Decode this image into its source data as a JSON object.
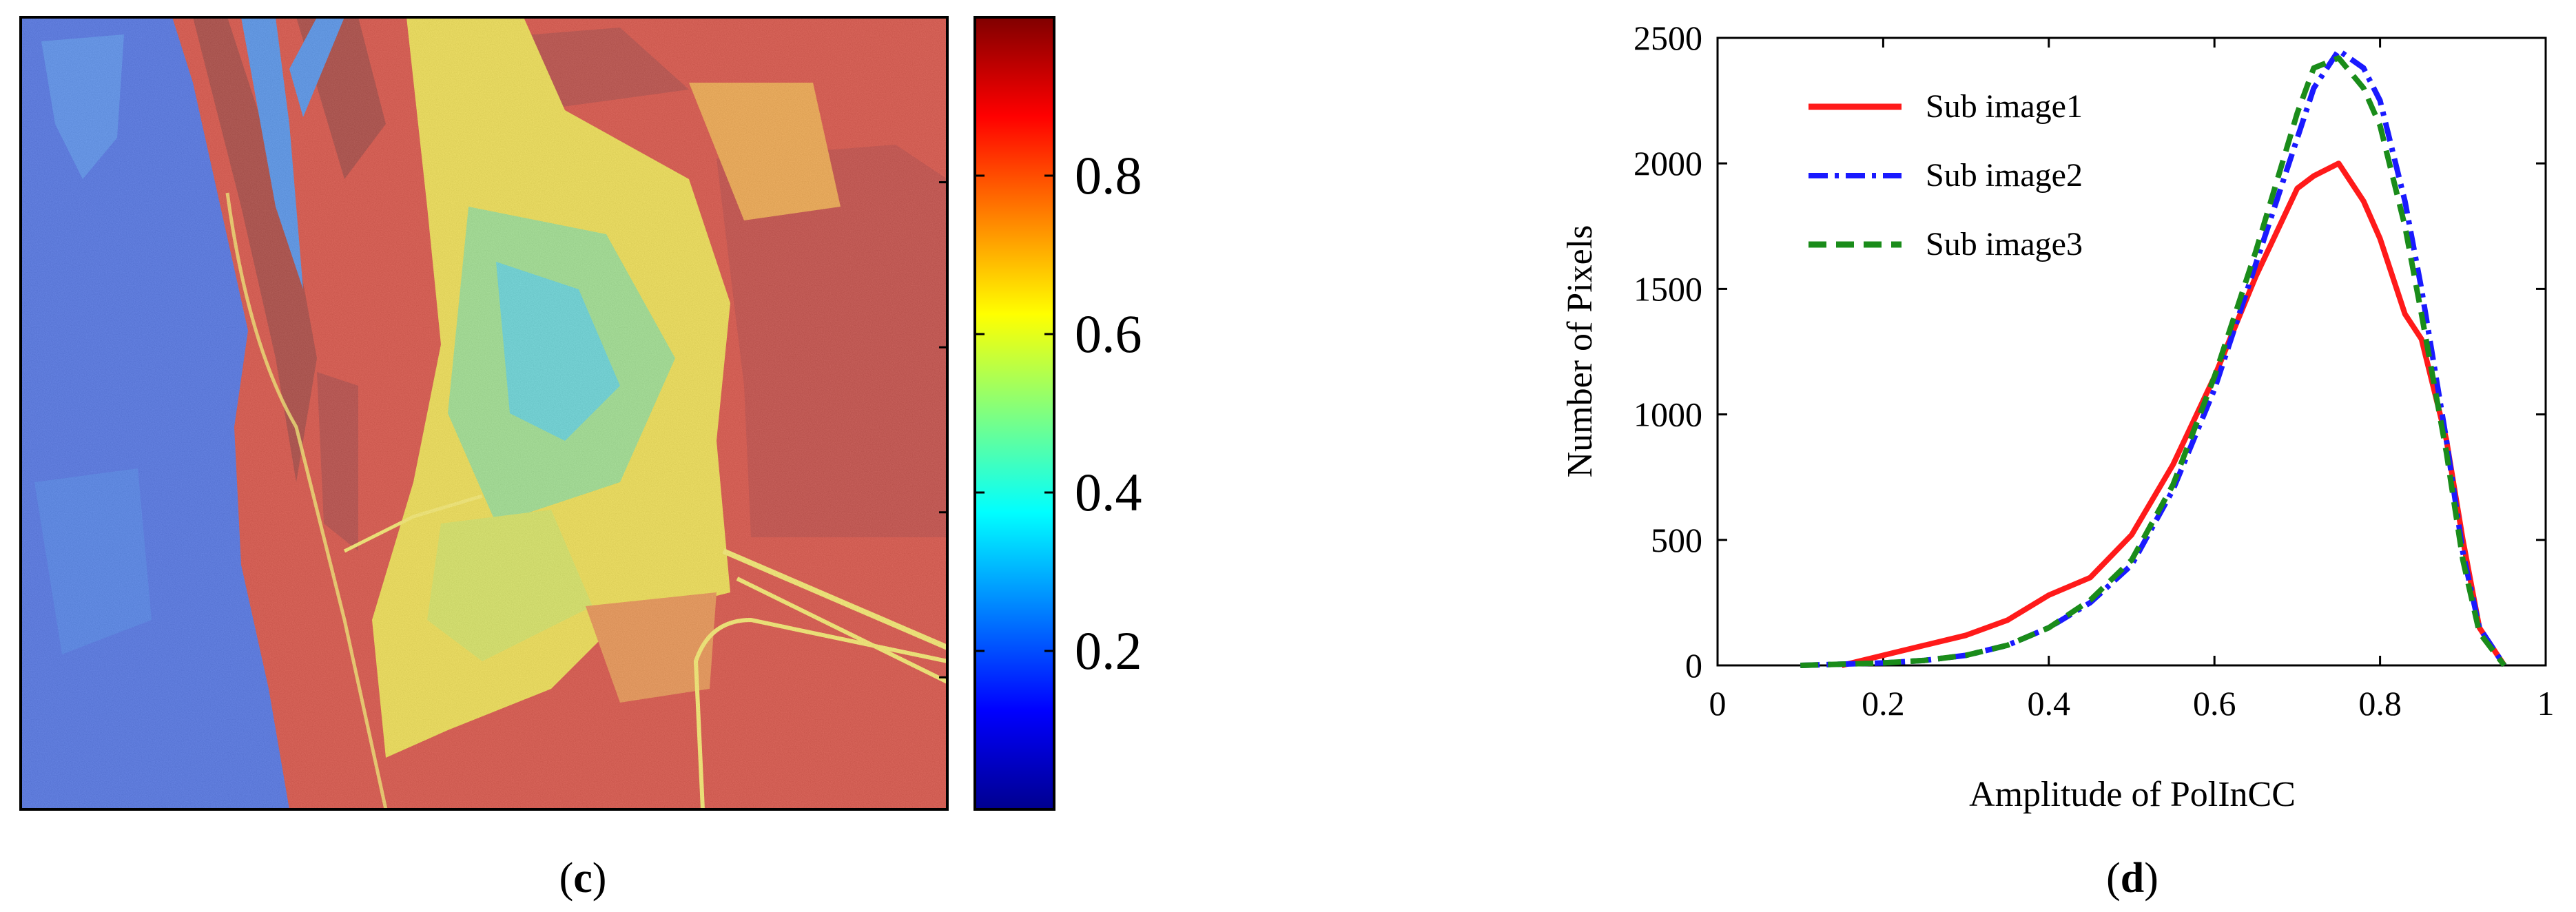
{
  "chart_data": [
    {
      "type": "heatmap",
      "panel_label": "c",
      "colorbar": {
        "range": [
          0,
          1
        ],
        "ticks": [
          0.2,
          0.4,
          0.6,
          0.8
        ],
        "tick_labels": [
          "0.2",
          "0.4",
          "0.6",
          "0.8"
        ],
        "colormap": "jet"
      }
    },
    {
      "type": "line",
      "panel_label": "d",
      "xlabel": "Amplitude of PolInCC",
      "ylabel": "Number of Pixels",
      "xlim": [
        0,
        1
      ],
      "ylim": [
        0,
        2500
      ],
      "xticks": [
        0,
        0.2,
        0.4,
        0.6,
        0.8,
        1
      ],
      "xtick_labels": [
        "0",
        "0.2",
        "0.4",
        "0.6",
        "0.8",
        "1"
      ],
      "yticks": [
        0,
        500,
        1000,
        1500,
        2000,
        2500
      ],
      "ytick_labels": [
        "0",
        "500",
        "1000",
        "1500",
        "2000",
        "2500"
      ],
      "legend_position": "top-left",
      "series": [
        {
          "name": "Sub image1",
          "color": "#ff1a1a",
          "style": "solid",
          "x": [
            0.15,
            0.2,
            0.25,
            0.3,
            0.35,
            0.4,
            0.45,
            0.5,
            0.55,
            0.6,
            0.65,
            0.7,
            0.72,
            0.75,
            0.78,
            0.8,
            0.83,
            0.85,
            0.88,
            0.9,
            0.92,
            0.95
          ],
          "y": [
            0,
            40,
            80,
            120,
            180,
            280,
            350,
            520,
            800,
            1150,
            1550,
            1900,
            1950,
            2000,
            1850,
            1700,
            1400,
            1300,
            900,
            500,
            150,
            0
          ]
        },
        {
          "name": "Sub image2",
          "color": "#1a1aff",
          "style": "dashdot",
          "x": [
            0.1,
            0.2,
            0.25,
            0.3,
            0.35,
            0.4,
            0.45,
            0.5,
            0.55,
            0.6,
            0.65,
            0.7,
            0.72,
            0.75,
            0.78,
            0.8,
            0.83,
            0.85,
            0.88,
            0.9,
            0.92,
            0.95
          ],
          "y": [
            0,
            10,
            20,
            40,
            80,
            150,
            250,
            400,
            700,
            1100,
            1600,
            2100,
            2300,
            2450,
            2380,
            2250,
            1850,
            1500,
            900,
            450,
            150,
            0
          ]
        },
        {
          "name": "Sub image3",
          "color": "#1a8c1a",
          "style": "dashed",
          "x": [
            0.1,
            0.2,
            0.25,
            0.3,
            0.35,
            0.4,
            0.45,
            0.5,
            0.55,
            0.6,
            0.65,
            0.7,
            0.72,
            0.75,
            0.78,
            0.8,
            0.83,
            0.85,
            0.88,
            0.9,
            0.92,
            0.95
          ],
          "y": [
            0,
            10,
            20,
            40,
            80,
            150,
            260,
            420,
            720,
            1150,
            1650,
            2200,
            2380,
            2420,
            2300,
            2150,
            1750,
            1400,
            850,
            420,
            130,
            0
          ]
        }
      ]
    }
  ]
}
